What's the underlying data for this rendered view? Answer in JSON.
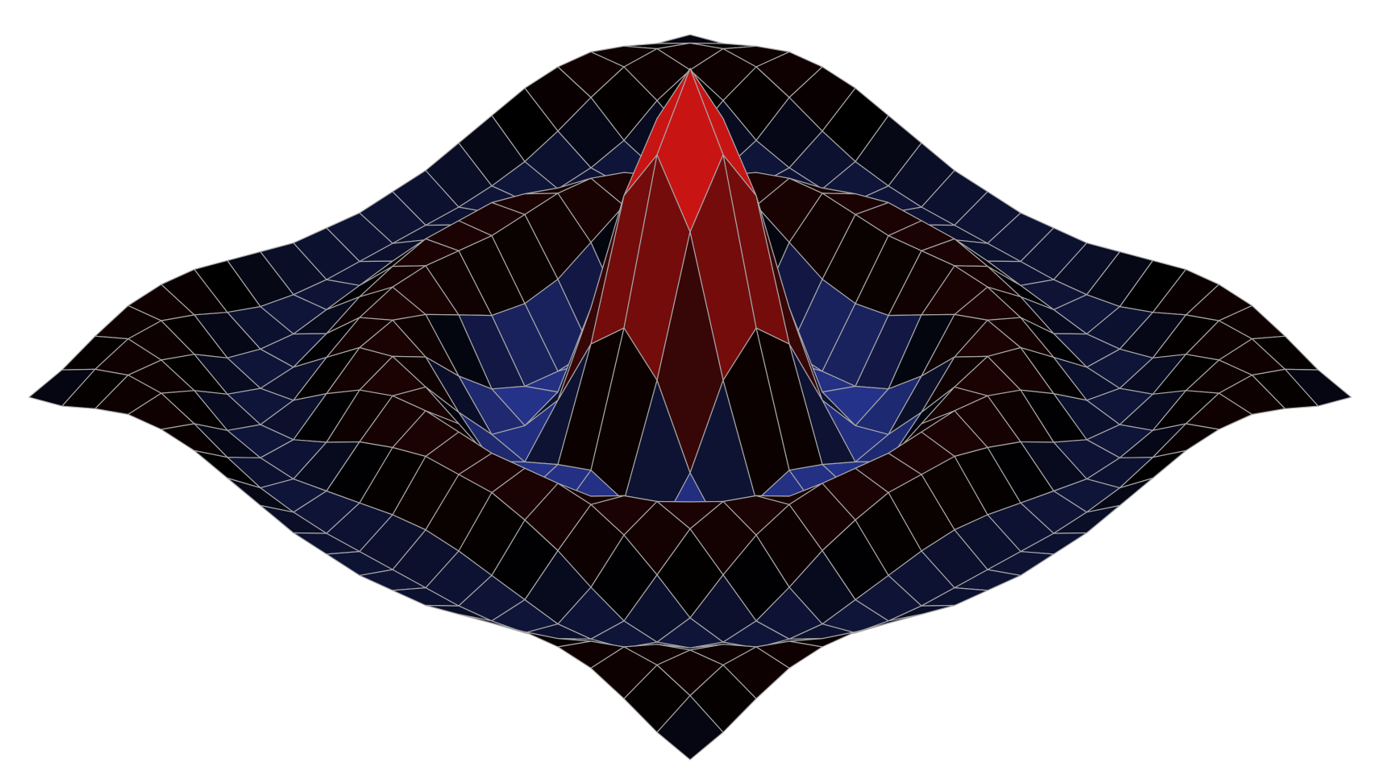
{
  "chart_data": {
    "type": "surface",
    "colors": [
      "#2a3aa0",
      "#000000",
      "#ff1a1a"
    ],
    "mesh_color": "#a6a6a6",
    "z": [
      [
        -0.06,
        -0.03,
        0.02,
        0.06,
        0.07,
        0.06,
        0.03,
        0,
        -0.03,
        -0.04,
        -0.05,
        -0.04,
        -0.03,
        0,
        0.03,
        0.06,
        0.07,
        0.06,
        0.02,
        -0.03,
        -0.06
      ],
      [
        -0.03,
        0.03,
        0.07,
        0.07,
        0.03,
        -0.02,
        -0.06,
        -0.08,
        -0.09,
        -0.09,
        -0.09,
        -0.09,
        -0.09,
        -0.08,
        -0.06,
        -0.02,
        0.03,
        0.07,
        0.07,
        0.03,
        -0.03
      ],
      [
        0.02,
        0.07,
        0.06,
        0.02,
        -0.05,
        -0.08,
        -0.09,
        -0.07,
        -0.05,
        -0.03,
        -0.02,
        -0.03,
        -0.05,
        -0.07,
        -0.09,
        -0.08,
        -0.05,
        0.02,
        0.06,
        0.07,
        0.02
      ],
      [
        0.06,
        0.07,
        0.02,
        -0.05,
        -0.09,
        -0.08,
        -0.03,
        0.03,
        0.07,
        0.1,
        0.1,
        0.1,
        0.07,
        0.03,
        -0.03,
        -0.08,
        -0.09,
        -0.05,
        0.02,
        0.07,
        0.06
      ],
      [
        0.07,
        0.03,
        -0.05,
        -0.09,
        -0.07,
        0.01,
        0.08,
        0.12,
        0.13,
        0.12,
        0.11,
        0.12,
        0.13,
        0.12,
        0.08,
        0.01,
        -0.07,
        -0.09,
        -0.05,
        0.03,
        0.07
      ],
      [
        0.06,
        -0.02,
        -0.08,
        -0.08,
        0.01,
        0.1,
        0.13,
        0.09,
        0.03,
        -0.03,
        -0.05,
        -0.03,
        0.03,
        0.09,
        0.13,
        0.1,
        0.01,
        -0.08,
        -0.08,
        -0.02,
        0.06
      ],
      [
        0.03,
        -0.06,
        -0.09,
        -0.03,
        0.08,
        0.13,
        0.07,
        -0.05,
        -0.15,
        -0.2,
        -0.21,
        -0.2,
        -0.15,
        -0.05,
        0.07,
        0.13,
        0.08,
        -0.03,
        -0.09,
        -0.06,
        0.03
      ],
      [
        0,
        -0.08,
        -0.07,
        0.03,
        0.12,
        0.09,
        -0.05,
        -0.18,
        -0.21,
        -0.16,
        -0.12,
        -0.16,
        -0.21,
        -0.18,
        -0.05,
        0.09,
        0.12,
        0.03,
        -0.07,
        -0.08,
        0
      ],
      [
        -0.03,
        -0.09,
        -0.05,
        0.07,
        0.13,
        0.03,
        -0.15,
        -0.21,
        -0.07,
        0.17,
        0.28,
        0.17,
        -0.07,
        -0.21,
        -0.15,
        0.03,
        0.13,
        0.07,
        -0.05,
        -0.09,
        -0.03
      ],
      [
        -0.04,
        -0.09,
        -0.03,
        0.1,
        0.12,
        -0.03,
        -0.2,
        -0.16,
        0.17,
        0.59,
        0.78,
        0.59,
        0.17,
        -0.16,
        -0.2,
        -0.03,
        0.12,
        0.1,
        -0.03,
        -0.09,
        -0.04
      ],
      [
        -0.05,
        -0.09,
        -0.02,
        0.1,
        0.11,
        -0.05,
        -0.21,
        -0.12,
        0.28,
        0.78,
        1,
        0.78,
        0.28,
        -0.12,
        -0.21,
        -0.05,
        0.11,
        0.1,
        -0.02,
        -0.09,
        -0.05
      ],
      [
        -0.04,
        -0.09,
        -0.03,
        0.1,
        0.12,
        -0.03,
        -0.2,
        -0.16,
        0.17,
        0.59,
        0.78,
        0.59,
        0.17,
        -0.16,
        -0.2,
        -0.03,
        0.12,
        0.1,
        -0.03,
        -0.09,
        -0.04
      ],
      [
        -0.03,
        -0.09,
        -0.05,
        0.07,
        0.13,
        0.03,
        -0.15,
        -0.21,
        -0.07,
        0.17,
        0.28,
        0.17,
        -0.07,
        -0.21,
        -0.15,
        0.03,
        0.13,
        0.07,
        -0.05,
        -0.09,
        -0.03
      ],
      [
        0,
        -0.08,
        -0.07,
        0.03,
        0.12,
        0.09,
        -0.05,
        -0.18,
        -0.21,
        -0.16,
        -0.12,
        -0.16,
        -0.21,
        -0.18,
        -0.05,
        0.09,
        0.12,
        0.03,
        -0.07,
        -0.08,
        0
      ],
      [
        0.03,
        -0.06,
        -0.09,
        -0.03,
        0.08,
        0.13,
        0.07,
        -0.05,
        -0.15,
        -0.2,
        -0.21,
        -0.2,
        -0.15,
        -0.05,
        0.07,
        0.13,
        0.08,
        -0.03,
        -0.09,
        -0.06,
        0.03
      ],
      [
        0.06,
        -0.02,
        -0.08,
        -0.08,
        0.01,
        0.1,
        0.13,
        0.09,
        0.03,
        -0.03,
        -0.05,
        -0.03,
        0.03,
        0.09,
        0.13,
        0.1,
        0.01,
        -0.08,
        -0.08,
        -0.02,
        0.06
      ],
      [
        0.07,
        0.03,
        -0.05,
        -0.09,
        -0.07,
        0.01,
        0.08,
        0.12,
        0.13,
        0.12,
        0.11,
        0.12,
        0.13,
        0.12,
        0.08,
        0.01,
        -0.07,
        -0.09,
        -0.05,
        0.03,
        0.07
      ],
      [
        0.06,
        0.07,
        0.02,
        -0.05,
        -0.09,
        -0.08,
        -0.03,
        0.03,
        0.07,
        0.1,
        0.1,
        0.1,
        0.07,
        0.03,
        -0.03,
        -0.08,
        -0.09,
        -0.05,
        0.02,
        0.07,
        0.06
      ],
      [
        0.02,
        0.07,
        0.06,
        0.02,
        -0.05,
        -0.08,
        -0.09,
        -0.07,
        -0.05,
        -0.03,
        -0.02,
        -0.03,
        -0.05,
        -0.07,
        -0.09,
        -0.08,
        -0.05,
        0.02,
        0.06,
        0.07,
        0.02
      ],
      [
        -0.03,
        0.03,
        0.07,
        0.07,
        0.03,
        -0.02,
        -0.06,
        -0.08,
        -0.09,
        -0.09,
        -0.09,
        -0.09,
        -0.09,
        -0.08,
        -0.06,
        -0.02,
        0.03,
        0.07,
        0.07,
        0.03,
        -0.03
      ],
      [
        -0.06,
        -0.03,
        0.02,
        0.06,
        0.07,
        0.06,
        0.03,
        0,
        -0.03,
        -0.04,
        -0.05,
        -0.04,
        -0.03,
        0,
        0.03,
        0.06,
        0.07,
        0.06,
        0.02,
        -0.03,
        -0.06
      ]
    ]
  }
}
